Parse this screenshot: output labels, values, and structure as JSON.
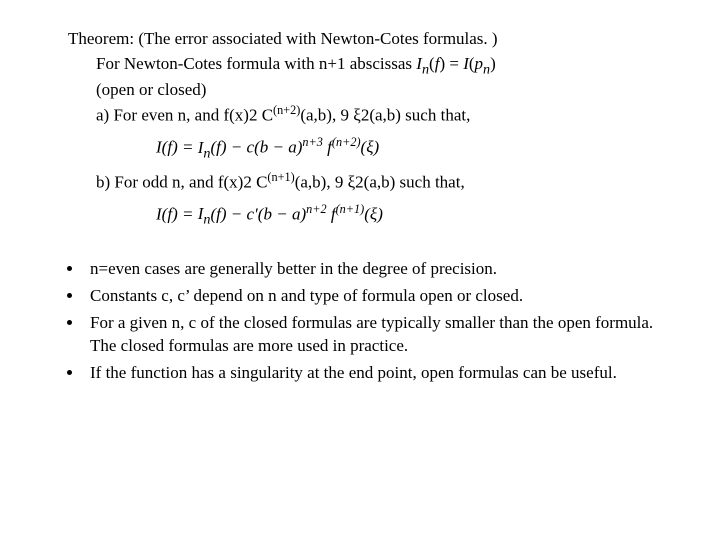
{
  "theorem": {
    "title": "Theorem: (The error associated with Newton-Cotes formulas. )",
    "line1_pre": "For Newton-Cotes formula with n+1 abscissas  ",
    "line1_math": "I_n(f) = I(p_n)",
    "line2": "(open or closed)",
    "a_pre": "a) For even n, and f(x)",
    "a_mid1": "2",
    "a_mid2": " C",
    "a_sup": "(n+2)",
    "a_mid3": "(a,b), ",
    "a_sym1": "9 ",
    "a_xi": "ξ",
    "a_sym2": "2",
    "a_post": "(a,b) such that,",
    "formula_a": "I(f) = I_n(f) − c(b − a)^{n+3} f^{(n+2)}(ξ)",
    "b_pre": "b) For odd n, and f(x)",
    "b_mid1": "2",
    "b_mid2": " C",
    "b_sup": "(n+1)",
    "b_mid3": "(a,b), ",
    "b_sym1": "9 ",
    "b_xi": "ξ",
    "b_sym2": "2",
    "b_post": "(a,b) such that,",
    "formula_b": "I(f) = I_n(f) − c′(b − a)^{n+2} f^{(n+1)}(ξ)"
  },
  "bullets": [
    "n=even cases are generally better in the degree of precision.",
    "Constants c, c’ depend on n and type of formula open or closed.",
    "For a given n, c of the closed formulas are typically smaller than the open formula. The closed formulas are more used in practice.",
    "If the function has a singularity at the end point, open formulas can be useful."
  ]
}
